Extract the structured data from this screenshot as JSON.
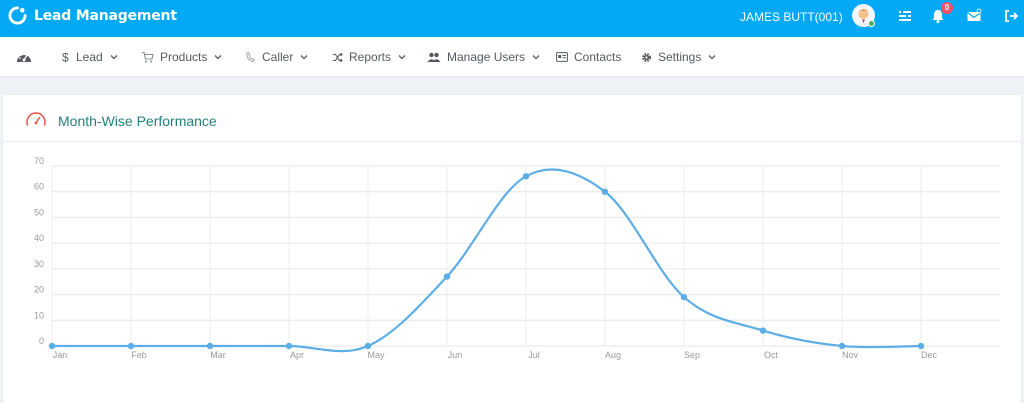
{
  "app": {
    "title": "Lead Management"
  },
  "topbar": {
    "user": "JAMES BUTT(001)",
    "notification_count": "0"
  },
  "nav": {
    "items": [
      {
        "label": "",
        "icon": "dashboard-icon"
      },
      {
        "label": "Lead",
        "icon": "dollar-icon",
        "dropdown": true
      },
      {
        "label": "Products",
        "icon": "cart-icon",
        "dropdown": true
      },
      {
        "label": "Caller",
        "icon": "phone-icon",
        "dropdown": true
      },
      {
        "label": "Reports",
        "icon": "shuffle-icon",
        "dropdown": true
      },
      {
        "label": "Manage Users",
        "icon": "users-icon",
        "dropdown": true
      },
      {
        "label": "Contacts",
        "icon": "contact-card-icon",
        "dropdown": false
      },
      {
        "label": "Settings",
        "icon": "gear-icon",
        "dropdown": true
      }
    ]
  },
  "panel": {
    "title": "Month-Wise Performance"
  },
  "colors": {
    "topbar": "#03a9f4",
    "accent_text": "#23807c",
    "line": "#5dade6",
    "badge": "#f4516c"
  },
  "chart_data": {
    "type": "line",
    "smooth": true,
    "categories": [
      "Jan",
      "Feb",
      "Mar",
      "Apr",
      "May",
      "Jun",
      "Jul",
      "Aug",
      "Sep",
      "Oct",
      "Nov",
      "Dec"
    ],
    "series": [
      {
        "values": [
          0,
          0,
          0,
          0,
          0,
          27,
          66,
          60,
          19,
          6,
          0,
          0
        ]
      }
    ],
    "yticks": [
      0,
      10,
      20,
      30,
      40,
      50,
      60,
      70
    ],
    "ylim": [
      0,
      70
    ],
    "grid": true,
    "legend": "none"
  }
}
